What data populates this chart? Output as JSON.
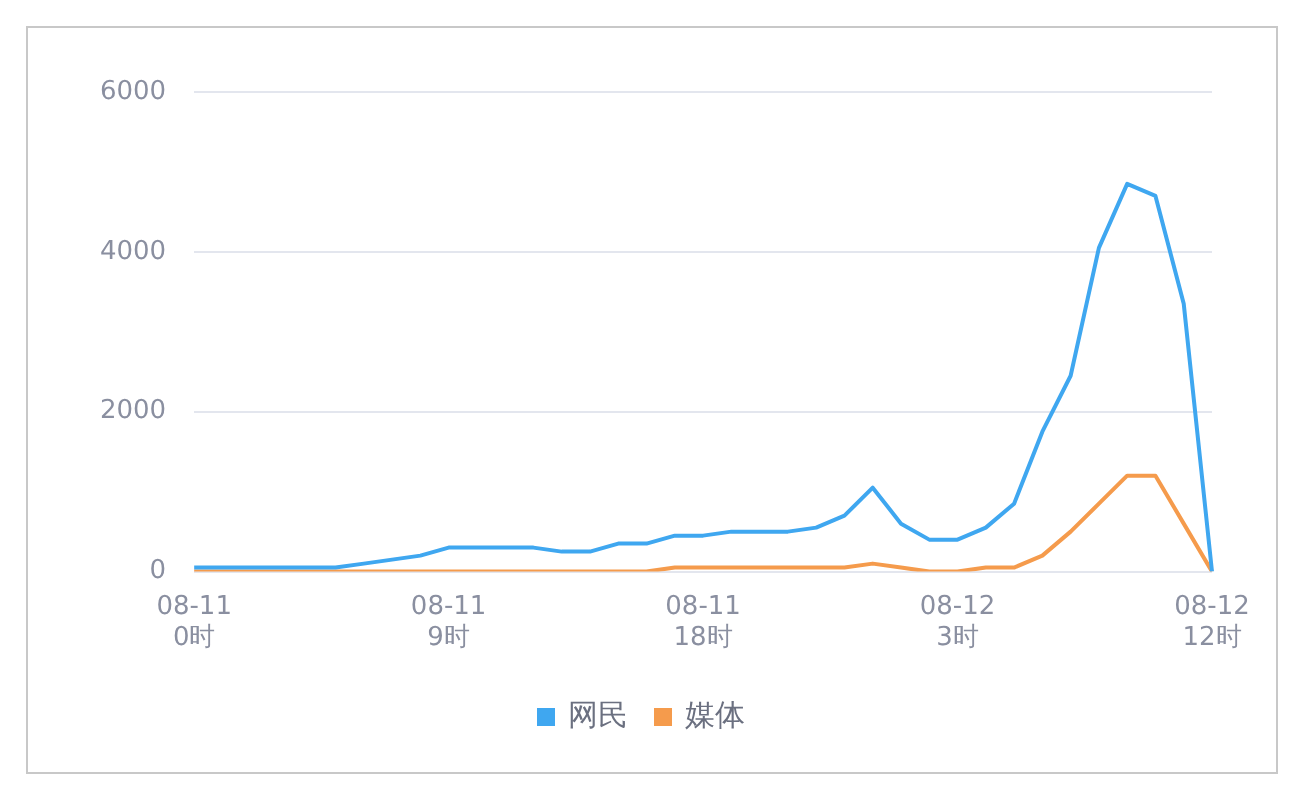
{
  "chart_data": {
    "type": "line",
    "categories": [
      "08-11\n0时",
      null,
      null,
      null,
      null,
      null,
      null,
      null,
      null,
      "08-11\n9时",
      null,
      null,
      null,
      null,
      null,
      null,
      null,
      null,
      "08-11\n18时",
      null,
      null,
      null,
      null,
      null,
      null,
      null,
      null,
      "08-12\n3时",
      null,
      null,
      null,
      null,
      null,
      null,
      null,
      null,
      "08-12\n12时"
    ],
    "series": [
      {
        "name": "网民",
        "color": "#3fa7f0",
        "values": [
          50,
          50,
          50,
          50,
          50,
          50,
          100,
          150,
          200,
          300,
          300,
          300,
          300,
          250,
          250,
          350,
          350,
          450,
          450,
          500,
          500,
          500,
          550,
          700,
          1050,
          600,
          400,
          400,
          550,
          850,
          1750,
          2450,
          4050,
          4850,
          4700,
          3350,
          0
        ]
      },
      {
        "name": "媒体",
        "color": "#f59b4c",
        "values": [
          0,
          0,
          0,
          0,
          0,
          0,
          0,
          0,
          0,
          0,
          0,
          0,
          0,
          0,
          0,
          0,
          0,
          50,
          50,
          50,
          50,
          50,
          50,
          50,
          100,
          50,
          0,
          0,
          50,
          50,
          200,
          500,
          850,
          1200,
          1200,
          600,
          0
        ]
      }
    ],
    "ylim": [
      0,
      6000
    ],
    "yticks": [
      0,
      2000,
      4000,
      6000
    ],
    "grid": "y",
    "legend": "bottom",
    "marker": "none",
    "line_style": "solid"
  }
}
